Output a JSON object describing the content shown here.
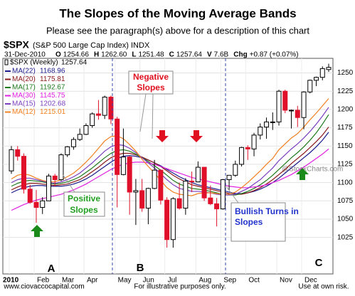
{
  "chart_data": {
    "type": "candlestick",
    "title": "The Slopes of the Moving Average Bands",
    "subtitle": "Please see the paragraph(s) above for a description of this chart",
    "symbol": "$SPX",
    "symbol_desc": "(S&P 500 Large Cap Index) INDX",
    "watermark": "@StockCharts.com",
    "date": "31-Dec-2010",
    "quote": [
      {
        "label": "O",
        "text": "1254.66"
      },
      {
        "label": "H",
        "text": "1262.60"
      },
      {
        "label": "L",
        "text": "1251.48"
      },
      {
        "label": "C",
        "text": "1257.64"
      },
      {
        "label": "V",
        "text": "7.6B"
      },
      {
        "label": "Chg",
        "text": "+0.87 (+0.07%)"
      }
    ],
    "candle_legend": "$SPX (Weekly)",
    "candle_last": "1257.64",
    "up_color": "#000000",
    "down_color": "#e0102a",
    "categories": [
      "2010",
      null,
      null,
      null,
      "Feb",
      null,
      null,
      null,
      "Mar",
      null,
      null,
      null,
      "Apr",
      null,
      null,
      null,
      null,
      "May",
      null,
      null,
      null,
      "Jun",
      null,
      null,
      null,
      "Jul",
      null,
      null,
      null,
      null,
      "Aug",
      null,
      null,
      null,
      "Sep",
      null,
      null,
      null,
      "Oct",
      null,
      null,
      null,
      null,
      "Nov",
      null,
      null,
      null,
      "Dec",
      null,
      null,
      null,
      null
    ],
    "open": [
      1116,
      1145,
      1136,
      1091,
      1073,
      1066,
      1075,
      1109,
      1104,
      1138,
      1149,
      1159,
      1166,
      1178,
      1194,
      1192,
      1217,
      1187,
      1111,
      1135,
      1087,
      1089,
      1065,
      1092,
      1117,
      1076,
      1022,
      1078,
      1065,
      1102,
      1101,
      1121,
      1079,
      1071,
      1064,
      1104,
      1110,
      1125,
      1148,
      1146,
      1165,
      1176,
      1183,
      1183,
      1225,
      1199,
      1199,
      1189,
      1224,
      1240,
      1244,
      1254.66
    ],
    "high": [
      1150,
      1150,
      1140,
      1097,
      1090,
      1080,
      1112,
      1112,
      1140,
      1150,
      1162,
      1174,
      1181,
      1196,
      1213,
      1219,
      1219,
      1190,
      1174,
      1137,
      1105,
      1105,
      1093,
      1131,
      1118,
      1080,
      1080,
      1100,
      1106,
      1115,
      1129,
      1121,
      1096,
      1079,
      1105,
      1110,
      1130,
      1149,
      1151,
      1168,
      1181,
      1189,
      1196,
      1227,
      1227,
      1200,
      1205,
      1225,
      1241,
      1245,
      1259,
      1262.6
    ],
    "low": [
      1112,
      1130,
      1085,
      1071,
      1045,
      1057,
      1075,
      1095,
      1102,
      1135,
      1145,
      1157,
      1165,
      1175,
      1186,
      1187,
      1180,
      1066,
      1110,
      1056,
      1042,
      1060,
      1043,
      1091,
      1070,
      1011,
      1011,
      1063,
      1056,
      1087,
      1101,
      1075,
      1069,
      1040,
      1063,
      1090,
      1108,
      1122,
      1131,
      1136,
      1159,
      1160,
      1172,
      1178,
      1195,
      1174,
      1176,
      1173,
      1222,
      1232,
      1240,
      1251.48
    ],
    "close": [
      1145,
      1136,
      1091,
      1073,
      1066,
      1075,
      1109,
      1104,
      1138,
      1149,
      1159,
      1166,
      1178,
      1194,
      1192,
      1217,
      1187,
      1111,
      1135,
      1087,
      1089,
      1065,
      1092,
      1117,
      1076,
      1022,
      1078,
      1065,
      1102,
      1101,
      1121,
      1079,
      1071,
      1064,
      1104,
      1110,
      1125,
      1148,
      1146,
      1165,
      1176,
      1183,
      1183,
      1225,
      1199,
      1199,
      1189,
      1224,
      1240,
      1244,
      1256,
      1257.64
    ],
    "series": [
      {
        "name": "MA(22)",
        "last_label": "1168.96",
        "color": "#1a1a8c",
        "values": [
          1086,
          1090,
          1093,
          1095,
          1096,
          1096,
          1095,
          1095,
          1095,
          1096,
          1098,
          1101,
          1105,
          1110,
          1116,
          1122,
          1128,
          1133,
          1136,
          1137,
          1136,
          1134,
          1131,
          1127,
          1123,
          1118,
          1113,
          1108,
          1104,
          1100,
          1097,
          1095,
          1093,
          1091,
          1089,
          1087,
          1085,
          1085,
          1086,
          1088,
          1091,
          1095,
          1100,
          1106,
          1113,
          1120,
          1127,
          1134,
          1141,
          1149,
          1158,
          1169
        ]
      },
      {
        "name": "MA(20)",
        "last_label": "1175.81",
        "color": "#8b1a1a",
        "values": [
          1090,
          1094,
          1097,
          1099,
          1099,
          1098,
          1097,
          1096,
          1097,
          1098,
          1101,
          1104,
          1109,
          1115,
          1121,
          1128,
          1134,
          1138,
          1140,
          1140,
          1138,
          1135,
          1131,
          1127,
          1122,
          1116,
          1110,
          1105,
          1101,
          1097,
          1095,
          1093,
          1091,
          1089,
          1087,
          1085,
          1084,
          1084,
          1086,
          1089,
          1093,
          1098,
          1104,
          1111,
          1118,
          1126,
          1133,
          1140,
          1148,
          1156,
          1165,
          1176
        ]
      },
      {
        "name": "MA(17)",
        "last_label": "1192.67",
        "color": "#1f7a1f",
        "values": [
          1095,
          1099,
          1102,
          1103,
          1102,
          1101,
          1099,
          1098,
          1099,
          1101,
          1104,
          1108,
          1114,
          1120,
          1127,
          1134,
          1140,
          1144,
          1145,
          1143,
          1139,
          1134,
          1129,
          1123,
          1117,
          1110,
          1103,
          1098,
          1095,
          1092,
          1091,
          1090,
          1088,
          1086,
          1084,
          1083,
          1083,
          1085,
          1088,
          1092,
          1097,
          1103,
          1110,
          1118,
          1126,
          1134,
          1141,
          1149,
          1158,
          1168,
          1180,
          1193
        ]
      },
      {
        "name": "MA(30)",
        "last_label": "1145.75",
        "color": "#e020e0",
        "values": [
          1062,
          1066,
          1070,
          1073,
          1076,
          1078,
          1080,
          1082,
          1084,
          1087,
          1090,
          1094,
          1098,
          1103,
          1108,
          1113,
          1118,
          1122,
          1125,
          1127,
          1128,
          1128,
          1127,
          1125,
          1122,
          1119,
          1116,
          1113,
          1110,
          1107,
          1105,
          1103,
          1101,
          1099,
          1097,
          1095,
          1094,
          1093,
          1093,
          1094,
          1095,
          1097,
          1100,
          1103,
          1107,
          1111,
          1116,
          1121,
          1127,
          1133,
          1139,
          1146
        ]
      },
      {
        "name": "MA(15)",
        "last_label": "1202.68",
        "color": "#7b3fbf",
        "values": [
          1100,
          1104,
          1106,
          1106,
          1104,
          1102,
          1100,
          1099,
          1101,
          1104,
          1108,
          1113,
          1120,
          1127,
          1135,
          1143,
          1149,
          1152,
          1151,
          1147,
          1141,
          1134,
          1127,
          1120,
          1112,
          1104,
          1097,
          1092,
          1090,
          1088,
          1088,
          1087,
          1086,
          1084,
          1083,
          1083,
          1084,
          1088,
          1092,
          1098,
          1104,
          1112,
          1120,
          1130,
          1138,
          1146,
          1153,
          1161,
          1170,
          1180,
          1191,
          1203
        ]
      },
      {
        "name": "MA(12)",
        "last_label": "1215.01",
        "color": "#f08020",
        "values": [
          1105,
          1110,
          1112,
          1110,
          1106,
          1103,
          1101,
          1101,
          1104,
          1108,
          1113,
          1120,
          1128,
          1137,
          1147,
          1157,
          1163,
          1164,
          1160,
          1152,
          1143,
          1132,
          1122,
          1113,
          1103,
          1093,
          1087,
          1084,
          1083,
          1082,
          1085,
          1086,
          1086,
          1085,
          1084,
          1084,
          1087,
          1093,
          1100,
          1108,
          1116,
          1125,
          1133,
          1145,
          1153,
          1161,
          1167,
          1176,
          1186,
          1195,
          1205,
          1215
        ]
      }
    ],
    "ylim": [
      975,
      1270
    ],
    "yticks": [
      1025,
      1050,
      1075,
      1100,
      1125,
      1150,
      1175,
      1200,
      1225,
      1250
    ],
    "grid": true,
    "annotations": {
      "negative": [
        "Negative",
        "Slopes"
      ],
      "positive": [
        "Positive",
        "Slopes"
      ],
      "bullish": [
        "Bullish Turns in",
        "Slopes"
      ],
      "letters": [
        "A",
        "B",
        "C"
      ]
    },
    "footer": [
      "www.ciovaccocapital.com",
      "For illustrative purposes only.",
      "Use at own risk."
    ]
  }
}
